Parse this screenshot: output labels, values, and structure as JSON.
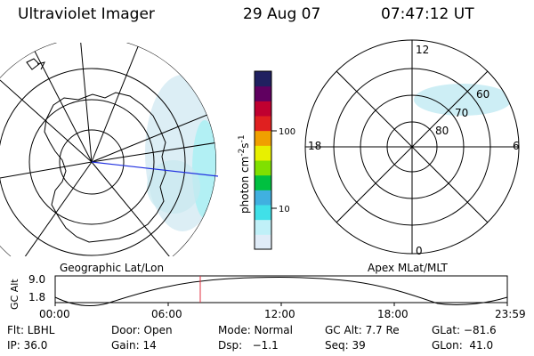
{
  "header": {
    "title": "Ultraviolet Imager",
    "date": "29 Aug 07",
    "time": "07:47:12 UT"
  },
  "colorbar": {
    "unit_label": "photon cm",
    "unit_sup1": "-2",
    "unit_mid": "s",
    "unit_sup2": "-1",
    "tick_100": "100",
    "tick_10": "10",
    "colors": [
      "#e0ecf8",
      "#c0f0f8",
      "#40e0e8",
      "#40b0e0",
      "#00c040",
      "#80e000",
      "#e8f000",
      "#f0a000",
      "#e02020",
      "#c00030",
      "#600060",
      "#202060"
    ]
  },
  "left_panel": {
    "caption": "Geographic Lat/Lon"
  },
  "right_panel": {
    "caption": "Apex MLat/MLT",
    "mlt_12": "12",
    "mlt_18": "18",
    "mlt_6": "6",
    "mlt_0": "0",
    "lat_60": "60",
    "lat_70": "70",
    "lat_80": "80"
  },
  "timeline": {
    "y_label": "GC Alt",
    "y_top": "9.0",
    "y_bottom": "1.8",
    "ticks": [
      "00:00",
      "06:00",
      "12:00",
      "18:00",
      "23:59"
    ]
  },
  "info": {
    "flt": "Flt: LBHL",
    "door": "Door: Open",
    "mode": "Mode: Normal",
    "gcalt": "GC Alt: 7.7 Re",
    "glat": "GLat: −81.6",
    "ip": "IP: 36.0",
    "gain": "Gain: 14",
    "dsp": "Dsp:   −1.1",
    "seq": "Seq: 39",
    "glon": "GLon:  41.0"
  }
}
